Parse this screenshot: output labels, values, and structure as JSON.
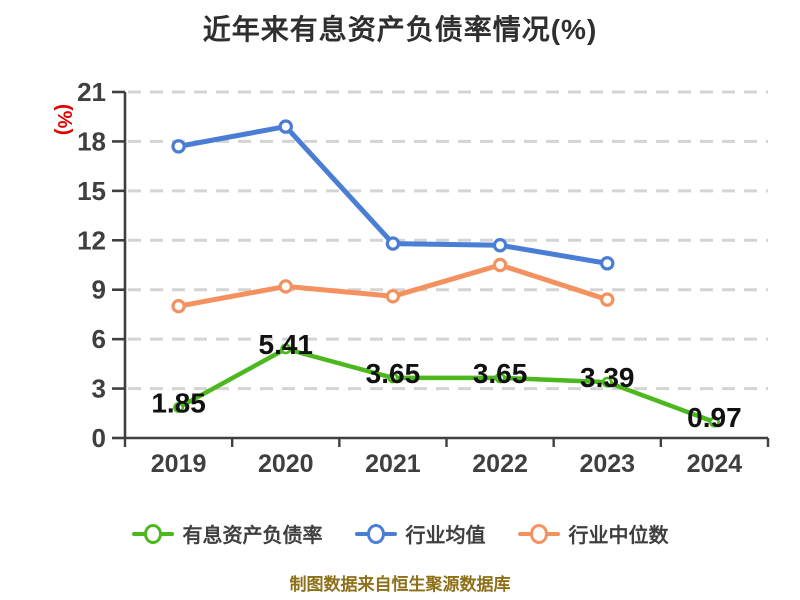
{
  "title": "近年来有息资产负债率情况(%)",
  "source_note": "制图数据来自恒生聚源数据库",
  "colors": {
    "background": "#ffffff",
    "title": "#2f2f2f",
    "axis": "#3f3f3f",
    "grid": "#d4d4d4",
    "tick_label": "#3f3f3f",
    "data_label": "#111111",
    "y_unit_label": "#e00000",
    "legend_label": "#3f3f3f",
    "source_note": "#8e7019"
  },
  "y_axis": {
    "unit_label": "(%)",
    "ticks": [
      0,
      3,
      6,
      9,
      12,
      15,
      18,
      21
    ],
    "max": 21
  },
  "chart_data": {
    "type": "line",
    "title": "近年来有息资产负债率情况(%)",
    "categories": [
      "2019",
      "2020",
      "2021",
      "2022",
      "2023",
      "2024"
    ],
    "xlabel": "",
    "ylabel": "(%)",
    "ylim": [
      0,
      21
    ],
    "grid": "horizontal-dashed",
    "legend_position": "bottom",
    "series": [
      {
        "name": "有息资产负债率",
        "color": "#4db81e",
        "values": [
          1.85,
          5.41,
          3.65,
          3.65,
          3.39,
          0.97
        ],
        "labels": [
          "1.85",
          "5.41",
          "3.65",
          "3.65",
          "3.39",
          "0.97"
        ],
        "show_labels": true,
        "marker": "circle-white-fill"
      },
      {
        "name": "行业均值",
        "color": "#4a7ed4",
        "values": [
          17.7,
          18.9,
          11.8,
          11.7,
          10.6,
          null
        ],
        "labels": [],
        "show_labels": false,
        "marker": "circle-white-fill"
      },
      {
        "name": "行业中位数",
        "color": "#f5915f",
        "values": [
          8.0,
          9.2,
          8.6,
          10.5,
          8.4,
          null
        ],
        "labels": [],
        "show_labels": false,
        "marker": "circle-white-fill"
      }
    ]
  }
}
